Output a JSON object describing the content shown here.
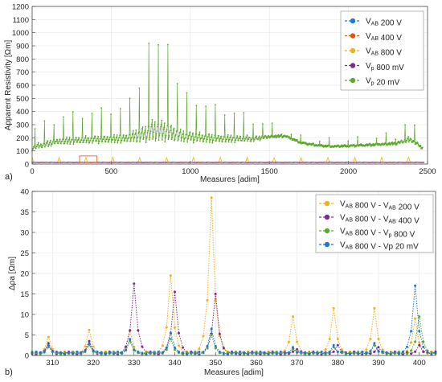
{
  "panel_labels": [
    "a)",
    "b)"
  ],
  "colors": {
    "vab200": "#1f77d4",
    "vab400": "#e0521c",
    "vab800": "#f0b21a",
    "vp800": "#7d2a8e",
    "vp20": "#5ea82e",
    "d200": "#f0b21a",
    "d400": "#7d2a8e",
    "dvp800": "#5ea82e",
    "dvp20": "#1f77d4",
    "grid": "#e6e6e6",
    "axis": "#333333",
    "zoom_box": "#e0521c"
  },
  "chart_data": [
    {
      "type": "line",
      "panel": "a)",
      "xlabel": "Measures [adim]",
      "ylabel": "Apparent Resistivity [Ωm]",
      "xlim": [
        0,
        2500
      ],
      "ylim": [
        0,
        1200
      ],
      "xticks": [
        0,
        500,
        1000,
        1500,
        2000,
        2500
      ],
      "yticks": [
        0,
        100,
        200,
        300,
        400,
        500,
        600,
        700,
        800,
        900,
        1000,
        1100,
        1200
      ],
      "grid": true,
      "legend_position": "top-right",
      "zoom_box_x": [
        300,
        410
      ],
      "series": [
        {
          "name": "VAB 200 V",
          "sub": "AB",
          "text": " 200 V",
          "color_key": "vab200",
          "level": 10
        },
        {
          "name": "VAB 400 V",
          "sub": "AB",
          "text": " 400 V",
          "color_key": "vab400",
          "level": 10
        },
        {
          "name": "VAB 800 V",
          "sub": "AB",
          "text": " 800 V",
          "color_key": "vab800",
          "level": 12
        },
        {
          "name": "Vp 800 mV",
          "sub": "p",
          "text": " 800 mV",
          "color_key": "vp800",
          "level": 10
        },
        {
          "name": "Vp 20 mV",
          "sub": "p",
          "text": " 20 mV",
          "color_key": "vp20",
          "base_profile": [
            [
              0,
              110
            ],
            [
              150,
              150
            ],
            [
              350,
              160
            ],
            [
              550,
              165
            ],
            [
              700,
              170
            ],
            [
              800,
              175
            ],
            [
              1000,
              170
            ],
            [
              1200,
              165
            ],
            [
              1400,
              175
            ],
            [
              1500,
              200
            ],
            [
              1600,
              210
            ],
            [
              1700,
              160
            ],
            [
              1800,
              140
            ],
            [
              1900,
              130
            ],
            [
              2100,
              140
            ],
            [
              2300,
              150
            ],
            [
              2400,
              170
            ],
            [
              2470,
              115
            ]
          ],
          "peak_profile": [
            [
              0,
              250
            ],
            [
              200,
              350
            ],
            [
              400,
              380
            ],
            [
              600,
              420
            ],
            [
              700,
              650
            ],
            [
              780,
              900
            ],
            [
              850,
              780
            ],
            [
              950,
              520
            ],
            [
              1100,
              430
            ],
            [
              1300,
              370
            ],
            [
              1450,
              300
            ],
            [
              1600,
              240
            ],
            [
              1700,
              180
            ],
            [
              1850,
              160
            ],
            [
              2100,
              170
            ],
            [
              2300,
              210
            ],
            [
              2380,
              320
            ],
            [
              2470,
              170
            ]
          ]
        }
      ]
    },
    {
      "type": "line",
      "panel": "b)",
      "xlabel": "Measures [adim]",
      "ylabel": "Δρa [Ωm]",
      "xlim": [
        305,
        404
      ],
      "ylim": [
        0,
        40
      ],
      "xticks": [
        310,
        320,
        330,
        340,
        350,
        360,
        370,
        380,
        390,
        400
      ],
      "yticks": [
        0,
        5,
        10,
        15,
        20,
        25,
        30,
        35,
        40
      ],
      "grid": true,
      "legend_position": "top-right",
      "series": [
        {
          "name": "VAB 800 V - VAB 200 V",
          "parts": [
            [
              "V",
              "AB",
              " 800 V - "
            ],
            [
              "V",
              "AB",
              " 200 V"
            ]
          ],
          "color_key": "d200",
          "peaks": [
            [
              309,
              4.5
            ],
            [
              319,
              6.2
            ],
            [
              329,
              6.0
            ],
            [
              339,
              19.5
            ],
            [
              349,
              38.5
            ],
            [
              369,
              9.5
            ],
            [
              379,
              11.5
            ],
            [
              389,
              11.5
            ],
            [
              399,
              9.0
            ]
          ]
        },
        {
          "name": "VAB 800 V - VAB 400 V",
          "parts": [
            [
              "V",
              "AB",
              " 800 V - "
            ],
            [
              "V",
              "AB",
              " 400 V"
            ]
          ],
          "color_key": "d400",
          "peaks": [
            [
              309,
              3.0
            ],
            [
              319,
              3.5
            ],
            [
              330,
              17.5
            ],
            [
              340,
              15.5
            ],
            [
              350,
              15.0
            ],
            [
              370,
              1.5
            ],
            [
              380,
              2.5
            ],
            [
              390,
              2.0
            ],
            [
              400,
              2.5
            ]
          ]
        },
        {
          "name": "VAB 800 V - Vp 800 V",
          "parts": [
            [
              "V",
              "AB",
              " 800 V - "
            ],
            [
              "V",
              "p",
              " 800 V"
            ]
          ],
          "color_key": "dvp800",
          "peaks": [
            [
              309,
              2.0
            ],
            [
              319,
              2.5
            ],
            [
              329,
              3.5
            ],
            [
              339,
              4.0
            ],
            [
              349,
              5.0
            ],
            [
              369,
              1.5
            ],
            [
              379,
              2.0
            ],
            [
              389,
              2.5
            ],
            [
              400,
              9.5
            ]
          ]
        },
        {
          "name": "VAB 800 V - Vp 20 mV",
          "parts": [
            [
              "V",
              "AB",
              " 800 V - "
            ],
            [
              "",
              "",
              "Vp 20 mV"
            ]
          ],
          "color_key": "dvp20",
          "peaks": [
            [
              309,
              2.5
            ],
            [
              319,
              3.0
            ],
            [
              329,
              4.0
            ],
            [
              339,
              5.5
            ],
            [
              349,
              6.5
            ],
            [
              369,
              2.0
            ],
            [
              379,
              2.5
            ],
            [
              389,
              3.0
            ],
            [
              399,
              17.0
            ]
          ]
        }
      ]
    }
  ]
}
